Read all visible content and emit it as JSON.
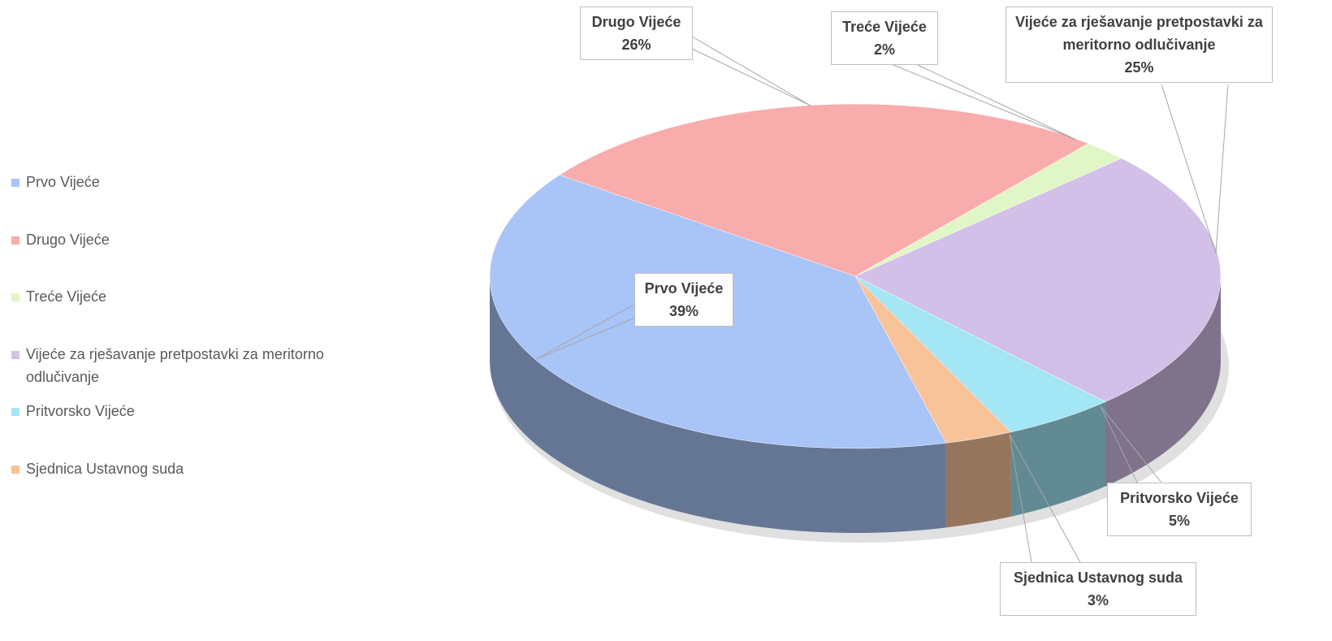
{
  "chart_data": {
    "type": "pie",
    "categories": [
      "Prvo Vijeće",
      "Drugo Vijeće",
      "Treće Vijeće",
      "Vijeće za rješavanje pretpostavki za meritorno odlučivanje",
      "Pritvorsko Vijeće",
      "Sjednica Ustavnog suda"
    ],
    "values": [
      39,
      26,
      2,
      25,
      5,
      3
    ],
    "value_labels": [
      "39%",
      "26%",
      "2%",
      "25%",
      "5%",
      "3%"
    ],
    "colors": [
      "#a9c4f7",
      "#f9acac",
      "#e0f6c6",
      "#d2c0e8",
      "#a3e6f6",
      "#f9c39a"
    ],
    "legend": "left"
  }
}
